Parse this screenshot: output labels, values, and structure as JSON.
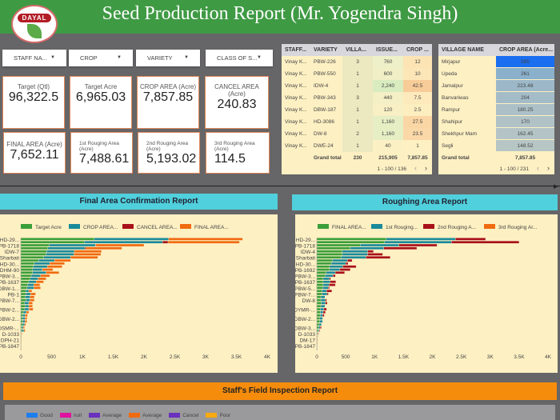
{
  "header": {
    "title": "Seed Production Report (Mr. Yogendra Singh)",
    "logo_text": "DAYAL"
  },
  "filters": [
    {
      "label": "STAFF NA..."
    },
    {
      "label": "CROP"
    },
    {
      "label": "VARIETY"
    },
    {
      "label": "CLASS OF S..."
    }
  ],
  "kpis": [
    {
      "label": "Target (Qtl)",
      "value": "96,322.5"
    },
    {
      "label": "Target Acre",
      "value": "6,965.03"
    },
    {
      "label": "CROP AREA (Acre)",
      "value": "7,857.85"
    },
    {
      "label": "CANCEL AREA (Acre)",
      "value": "240.83"
    },
    {
      "label": "FINAL AREA (Acre)",
      "value": "7,652.11"
    },
    {
      "label": "1st Rouging Area (Acre)",
      "value": "7,488.61"
    },
    {
      "label": "2nd Rouging Area (Acre)",
      "value": "5,193.02"
    },
    {
      "label": "3rd Rouging Area (Acre)",
      "value": "114.5"
    }
  ],
  "staff_table": {
    "headers": [
      "STAFF...",
      "VARIETY",
      "VILLA...",
      "ISSUE...",
      "CROP ..."
    ],
    "rows": [
      [
        "Vinay K...",
        "PBW-226",
        "3",
        "760",
        "12"
      ],
      [
        "Vinay K...",
        "PBW-550",
        "1",
        "600",
        "10"
      ],
      [
        "Vinay K...",
        "IDW-4",
        "1",
        "2,240",
        "42.5"
      ],
      [
        "Vinay K...",
        "PBW-343",
        "3",
        "440",
        "7.5"
      ],
      [
        "Vinay K...",
        "DBW-187",
        "1",
        "120",
        "2.5"
      ],
      [
        "Vinay K...",
        "HD-3086",
        "1",
        "1,160",
        "27.5"
      ],
      [
        "Vinay K...",
        "DW-8",
        "2",
        "1,160",
        "23.5"
      ],
      [
        "Vinay K...",
        "DWE-24",
        "1",
        "40",
        "1"
      ]
    ],
    "total": [
      "",
      "Grand total",
      "230",
      "215,905",
      "7,857.85"
    ],
    "pagination": "1 - 100 / 136"
  },
  "village_table": {
    "headers": [
      "VILLAGE NAME",
      "CROP AREA (Acre..."
    ],
    "rows": [
      [
        "Mirjapur",
        "585"
      ],
      [
        "Upeda",
        "261"
      ],
      [
        "Jamalpur",
        "223.48"
      ],
      [
        "Banvariwas",
        "204"
      ],
      [
        "Rampur",
        "180.25"
      ],
      [
        "Shahipur",
        "170"
      ],
      [
        "Shekhpur Mam",
        "162.45"
      ],
      [
        "Segli",
        "148.52"
      ]
    ],
    "total": [
      "Grand total",
      "7,857.85"
    ],
    "pagination": "1 - 100 / 231"
  },
  "colors": {
    "green": "#3a9e3a",
    "teal": "#1a8a9a",
    "red": "#a8101a",
    "orange": "#f06a10",
    "header": "#3f9a44",
    "section": "#50d0dc",
    "inspection": "#f68c0c"
  },
  "chart_data": [
    {
      "type": "bar",
      "orientation": "horizontal",
      "stacked": true,
      "title": "Final Area Confirmation Report",
      "xlim": [
        0,
        4000
      ],
      "xticks": [
        "0",
        "500",
        "1K",
        "1.5K",
        "2K",
        "2.5K",
        "3K",
        "3.5K",
        "4K"
      ],
      "legend": "top",
      "series": [
        {
          "name": "Target Acre",
          "color": "#3a9e3a"
        },
        {
          "name": "CROP AREA...",
          "color": "#1a8a9a"
        },
        {
          "name": "CANCEL AREA...",
          "color": "#a8101a"
        },
        {
          "name": "FINAL AREA...",
          "color": "#f06a10"
        }
      ],
      "rows": [
        [
          "HD-29...",
          [
            1190,
            1210,
            0,
            1200
          ]
        ],
        [
          "",
          [
            1030,
            1270,
            90,
            1160
          ]
        ],
        [
          "PB-1718",
          [
            460,
            750,
            10,
            780
          ]
        ],
        [
          "",
          [
            440,
            600,
            20,
            580
          ]
        ],
        [
          "IDW-7",
          [
            420,
            450,
            0,
            440
          ]
        ],
        [
          "",
          [
            410,
            450,
            0,
            440
          ]
        ],
        [
          "Sharbati",
          [
            370,
            440,
            0,
            440
          ]
        ],
        [
          "",
          [
            290,
            260,
            0,
            260
          ]
        ],
        [
          "HD-30...",
          [
            220,
            250,
            0,
            240
          ]
        ],
        [
          "",
          [
            200,
            230,
            0,
            240
          ]
        ],
        [
          "DHM-90",
          [
            190,
            160,
            0,
            170
          ]
        ],
        [
          "",
          [
            190,
            220,
            0,
            210
          ]
        ],
        [
          "PBW-3...",
          [
            170,
            150,
            0,
            150
          ]
        ],
        [
          "",
          [
            150,
            130,
            0,
            130
          ]
        ],
        [
          "PB-1637",
          [
            130,
            120,
            0,
            120
          ]
        ],
        [
          "",
          [
            110,
            100,
            0,
            100
          ]
        ],
        [
          "DBW-1...",
          [
            100,
            110,
            0,
            110
          ]
        ],
        [
          "",
          [
            80,
            50,
            0,
            50
          ]
        ],
        [
          "PB-1",
          [
            80,
            80,
            0,
            80
          ]
        ],
        [
          "",
          [
            70,
            80,
            0,
            70
          ]
        ],
        [
          "PBW-7...",
          [
            80,
            70,
            0,
            70
          ]
        ],
        [
          "",
          [
            60,
            70,
            0,
            60
          ]
        ],
        [
          "",
          [
            70,
            60,
            0,
            60
          ]
        ],
        [
          "PBW-2...",
          [
            60,
            70,
            10,
            60
          ]
        ],
        [
          "",
          [
            40,
            50,
            0,
            40
          ]
        ],
        [
          "",
          [
            30,
            40,
            0,
            40
          ]
        ],
        [
          "DBW-2...",
          [
            30,
            40,
            0,
            30
          ]
        ],
        [
          "",
          [
            30,
            40,
            0,
            30
          ]
        ],
        [
          "",
          [
            30,
            30,
            0,
            20
          ]
        ],
        [
          "DSMR-...",
          [
            20,
            20,
            0,
            20
          ]
        ],
        [
          "",
          [
            20,
            30,
            0,
            20
          ]
        ],
        [
          "D-1033",
          [
            5,
            5,
            0,
            10
          ]
        ],
        [
          "",
          [
            3,
            3,
            0,
            3
          ]
        ],
        [
          "DPH-21",
          [
            3,
            2,
            0,
            2
          ]
        ],
        [
          "",
          [
            2,
            2,
            0,
            2
          ]
        ],
        [
          "PB-1847",
          [
            1,
            1,
            0,
            1
          ]
        ],
        [
          "",
          [
            1,
            1,
            0,
            1
          ]
        ]
      ]
    },
    {
      "type": "bar",
      "orientation": "horizontal",
      "stacked": true,
      "title": "Roughing Area Report",
      "xlim": [
        0,
        4000
      ],
      "xticks": [
        "0",
        "500",
        "1K",
        "1.5K",
        "2K",
        "2.5K",
        "3K",
        "3.5K",
        "4K"
      ],
      "legend": "top",
      "series": [
        {
          "name": "FINAL AREA...",
          "color": "#3a9e3a"
        },
        {
          "name": "1st Rouging...",
          "color": "#1a8a9a"
        },
        {
          "name": "2nd Rouging A...",
          "color": "#a8101a"
        },
        {
          "name": "3rd Rouging Ar...",
          "color": "#f06a10"
        }
      ],
      "rows": [
        [
          "HD-29...",
          [
            1200,
            1200,
            520,
            0
          ]
        ],
        [
          "",
          [
            1170,
            1160,
            1170,
            0
          ]
        ],
        [
          "PB-1718",
          [
            750,
            670,
            660,
            0
          ]
        ],
        [
          "",
          [
            580,
            580,
            570,
            0
          ]
        ],
        [
          "IDW-4",
          [
            440,
            440,
            100,
            0
          ]
        ],
        [
          "",
          [
            440,
            440,
            260,
            0
          ]
        ],
        [
          "Sharbati",
          [
            420,
            430,
            420,
            0
          ]
        ],
        [
          "",
          [
            270,
            260,
            80,
            0
          ]
        ],
        [
          "HD-30...",
          [
            250,
            250,
            40,
            0
          ]
        ],
        [
          "",
          [
            220,
            230,
            230,
            0
          ]
        ],
        [
          "PB-1692",
          [
            220,
            180,
            180,
            0
          ]
        ],
        [
          "",
          [
            160,
            160,
            160,
            0
          ]
        ],
        [
          "PBW-3...",
          [
            140,
            140,
            40,
            0
          ]
        ],
        [
          "",
          [
            110,
            110,
            20,
            0
          ]
        ],
        [
          "PB-1637",
          [
            110,
            120,
            100,
            0
          ]
        ],
        [
          "",
          [
            110,
            100,
            110,
            0
          ]
        ],
        [
          "PBW-5...",
          [
            100,
            100,
            20,
            0
          ]
        ],
        [
          "",
          [
            90,
            80,
            90,
            0
          ]
        ],
        [
          "PBW-7...",
          [
            90,
            90,
            20,
            0
          ]
        ],
        [
          "",
          [
            70,
            70,
            0,
            0
          ]
        ],
        [
          "DW-8",
          [
            70,
            80,
            20,
            0
          ]
        ],
        [
          "",
          [
            80,
            70,
            30,
            0
          ]
        ],
        [
          "",
          [
            70,
            70,
            0,
            0
          ]
        ],
        [
          "DYMR-...",
          [
            60,
            60,
            50,
            0
          ]
        ],
        [
          "",
          [
            60,
            50,
            40,
            0
          ]
        ],
        [
          "",
          [
            60,
            40,
            30,
            0
          ]
        ],
        [
          "DBW-2...",
          [
            50,
            50,
            0,
            0
          ]
        ],
        [
          "",
          [
            50,
            50,
            0,
            0
          ]
        ],
        [
          "",
          [
            40,
            40,
            0,
            0
          ]
        ],
        [
          "DBW-3...",
          [
            30,
            30,
            20,
            0
          ]
        ],
        [
          "",
          [
            20,
            20,
            10,
            0
          ]
        ],
        [
          "D-1033",
          [
            10,
            10,
            10,
            0
          ]
        ],
        [
          "",
          [
            5,
            5,
            5,
            0
          ]
        ],
        [
          "DM-17",
          [
            3,
            3,
            3,
            0
          ]
        ],
        [
          "",
          [
            2,
            2,
            2,
            0
          ]
        ],
        [
          "PB-1847",
          [
            1,
            1,
            0,
            0
          ]
        ],
        [
          "",
          [
            1,
            1,
            0,
            0
          ]
        ]
      ]
    }
  ],
  "inspection": {
    "title": "Staff's Field Inspection Report",
    "legend": [
      {
        "name": "Good",
        "color": "#1e7ef0"
      },
      {
        "name": "null",
        "color": "#e010a0"
      },
      {
        "name": "Average",
        "color": "#6a30c0"
      },
      {
        "name": "Average",
        "color": "#f06a10"
      },
      {
        "name": "Cancel",
        "color": "#6a30c0"
      },
      {
        "name": "Poor",
        "color": "#f8aa10"
      }
    ]
  }
}
